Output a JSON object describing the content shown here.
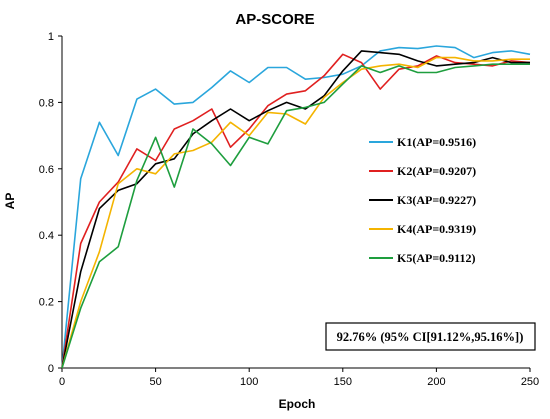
{
  "chart_data": {
    "type": "line",
    "title": "AP-SCORE",
    "xlabel": "Epoch",
    "ylabel": "AP",
    "xlim": [
      0,
      250
    ],
    "ylim": [
      0,
      1
    ],
    "xticks": [
      0,
      50,
      100,
      150,
      200,
      250
    ],
    "yticks": [
      0,
      0.2,
      0.4,
      0.6,
      0.8,
      1
    ],
    "ytick_labels": [
      "0",
      "0.2",
      "0.4",
      "0.6",
      "0.8",
      "1"
    ],
    "grid": false,
    "legend_position": "right",
    "x": [
      0,
      10,
      20,
      30,
      40,
      50,
      60,
      70,
      80,
      90,
      100,
      110,
      120,
      130,
      140,
      150,
      160,
      170,
      180,
      190,
      200,
      210,
      220,
      230,
      240,
      250
    ],
    "series": [
      {
        "name": "K1(AP=0.9516)",
        "color": "#2aa6dc",
        "values": [
          0,
          0.57,
          0.74,
          0.64,
          0.81,
          0.84,
          0.795,
          0.8,
          0.845,
          0.895,
          0.86,
          0.905,
          0.905,
          0.87,
          0.875,
          0.885,
          0.91,
          0.955,
          0.965,
          0.962,
          0.97,
          0.965,
          0.935,
          0.95,
          0.955,
          0.945
        ]
      },
      {
        "name": "K2(AP=0.9207)",
        "color": "#e02020",
        "values": [
          0,
          0.375,
          0.5,
          0.56,
          0.66,
          0.625,
          0.72,
          0.745,
          0.78,
          0.665,
          0.72,
          0.79,
          0.825,
          0.835,
          0.88,
          0.945,
          0.92,
          0.84,
          0.9,
          0.91,
          0.94,
          0.92,
          0.915,
          0.91,
          0.925,
          0.92
        ]
      },
      {
        "name": "K3(AP=0.9227)",
        "color": "#000000",
        "values": [
          0,
          0.29,
          0.48,
          0.535,
          0.555,
          0.615,
          0.63,
          0.705,
          0.745,
          0.78,
          0.745,
          0.775,
          0.8,
          0.78,
          0.82,
          0.895,
          0.955,
          0.95,
          0.945,
          0.925,
          0.91,
          0.915,
          0.92,
          0.935,
          0.92,
          0.92
        ]
      },
      {
        "name": "K4(AP=0.9319)",
        "color": "#f4b400",
        "values": [
          0,
          0.2,
          0.35,
          0.555,
          0.6,
          0.585,
          0.645,
          0.655,
          0.68,
          0.74,
          0.7,
          0.77,
          0.765,
          0.735,
          0.815,
          0.86,
          0.9,
          0.91,
          0.915,
          0.905,
          0.935,
          0.935,
          0.925,
          0.925,
          0.93,
          0.93
        ]
      },
      {
        "name": "K5(AP=0.9112)",
        "color": "#1e9e3e",
        "values": [
          0,
          0.18,
          0.32,
          0.365,
          0.565,
          0.695,
          0.545,
          0.72,
          0.675,
          0.61,
          0.695,
          0.675,
          0.775,
          0.785,
          0.8,
          0.855,
          0.91,
          0.89,
          0.91,
          0.89,
          0.89,
          0.905,
          0.91,
          0.915,
          0.915,
          0.915
        ]
      }
    ],
    "annotation": "92.76% (95% CI[91.12%,95.16%])"
  }
}
